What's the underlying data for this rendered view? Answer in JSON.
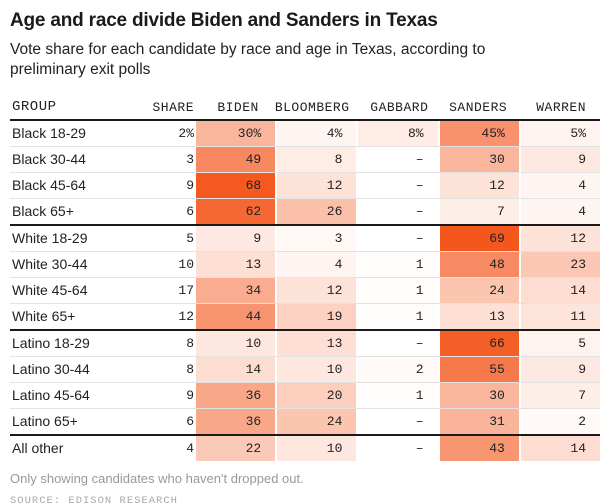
{
  "title": "Age and race divide Biden and Sanders in Texas",
  "subtitle": "Vote share for each candidate by race and age in Texas, according to preliminary exit polls",
  "footnote": "Only showing candidates who haven't dropped out.",
  "source": "SOURCE: EDISON RESEARCH",
  "colors": {
    "shade_max": "#f4571d",
    "section_border": "#1a1a1a",
    "row_border": "#e2e2e2",
    "header_text": "#565656",
    "body_text": "#222222",
    "footnote_text": "#999999"
  },
  "table": {
    "columns": [
      "GROUP",
      "SHARE",
      "BIDEN",
      "BLOOMBERG",
      "GABBARD",
      "SANDERS",
      "WARREN"
    ],
    "max_value": 69,
    "rows": [
      {
        "group": "Black 18-29",
        "share": "2%",
        "values": [
          "30%",
          "4%",
          "8%",
          "45%",
          "5%"
        ],
        "section_start": false
      },
      {
        "group": "Black 30-44",
        "share": "3",
        "values": [
          "49",
          "8",
          "–",
          "30",
          "9"
        ],
        "section_start": false
      },
      {
        "group": "Black 45-64",
        "share": "9",
        "values": [
          "68",
          "12",
          "–",
          "12",
          "4"
        ],
        "section_start": false
      },
      {
        "group": "Black 65+",
        "share": "6",
        "values": [
          "62",
          "26",
          "–",
          "7",
          "4"
        ],
        "section_start": false
      },
      {
        "group": "White 18-29",
        "share": "5",
        "values": [
          "9",
          "3",
          "–",
          "69",
          "12"
        ],
        "section_start": true
      },
      {
        "group": "White 30-44",
        "share": "10",
        "values": [
          "13",
          "4",
          "1",
          "48",
          "23"
        ],
        "section_start": false
      },
      {
        "group": "White 45-64",
        "share": "17",
        "values": [
          "34",
          "12",
          "1",
          "24",
          "14"
        ],
        "section_start": false
      },
      {
        "group": "White 65+",
        "share": "12",
        "values": [
          "44",
          "19",
          "1",
          "13",
          "11"
        ],
        "section_start": false
      },
      {
        "group": "Latino 18-29",
        "share": "8",
        "values": [
          "10",
          "13",
          "–",
          "66",
          "5"
        ],
        "section_start": true
      },
      {
        "group": "Latino 30-44",
        "share": "8",
        "values": [
          "14",
          "10",
          "2",
          "55",
          "9"
        ],
        "section_start": false
      },
      {
        "group": "Latino 45-64",
        "share": "9",
        "values": [
          "36",
          "20",
          "1",
          "30",
          "7"
        ],
        "section_start": false
      },
      {
        "group": "Latino 65+",
        "share": "6",
        "values": [
          "36",
          "24",
          "–",
          "31",
          "2"
        ],
        "section_start": false
      },
      {
        "group": "All other",
        "share": "4",
        "values": [
          "22",
          "10",
          "–",
          "43",
          "14"
        ],
        "section_start": true
      }
    ]
  },
  "chart_data": {
    "type": "heatmap",
    "title": "Age and race divide Biden and Sanders in Texas",
    "subtitle": "Vote share for each candidate by race and age in Texas, according to preliminary exit polls",
    "categories": [
      "Black 18-29",
      "Black 30-44",
      "Black 45-64",
      "Black 65+",
      "White 18-29",
      "White 30-44",
      "White 45-64",
      "White 65+",
      "Latino 18-29",
      "Latino 30-44",
      "Latino 45-64",
      "Latino 65+",
      "All other"
    ],
    "share_of_electorate_pct": [
      2,
      3,
      9,
      6,
      5,
      10,
      17,
      12,
      8,
      8,
      9,
      6,
      4
    ],
    "series": [
      {
        "name": "BIDEN",
        "values": [
          30,
          49,
          68,
          62,
          9,
          13,
          34,
          44,
          10,
          14,
          36,
          36,
          22
        ]
      },
      {
        "name": "BLOOMBERG",
        "values": [
          4,
          8,
          12,
          26,
          3,
          4,
          12,
          19,
          13,
          10,
          20,
          24,
          10
        ]
      },
      {
        "name": "GABBARD",
        "values": [
          8,
          null,
          null,
          null,
          null,
          1,
          1,
          1,
          null,
          2,
          1,
          null,
          null
        ]
      },
      {
        "name": "SANDERS",
        "values": [
          45,
          30,
          12,
          7,
          69,
          48,
          24,
          13,
          66,
          55,
          30,
          31,
          43
        ]
      },
      {
        "name": "WARREN",
        "values": [
          5,
          9,
          4,
          4,
          12,
          23,
          14,
          11,
          5,
          9,
          7,
          2,
          14
        ]
      }
    ],
    "value_unit": "percent",
    "color_scale": {
      "min_color": "#ffffff",
      "max_color": "#f4571d",
      "domain": [
        0,
        69
      ]
    },
    "footnote": "Only showing candidates who haven't dropped out.",
    "source": "SOURCE: EDISON RESEARCH"
  }
}
